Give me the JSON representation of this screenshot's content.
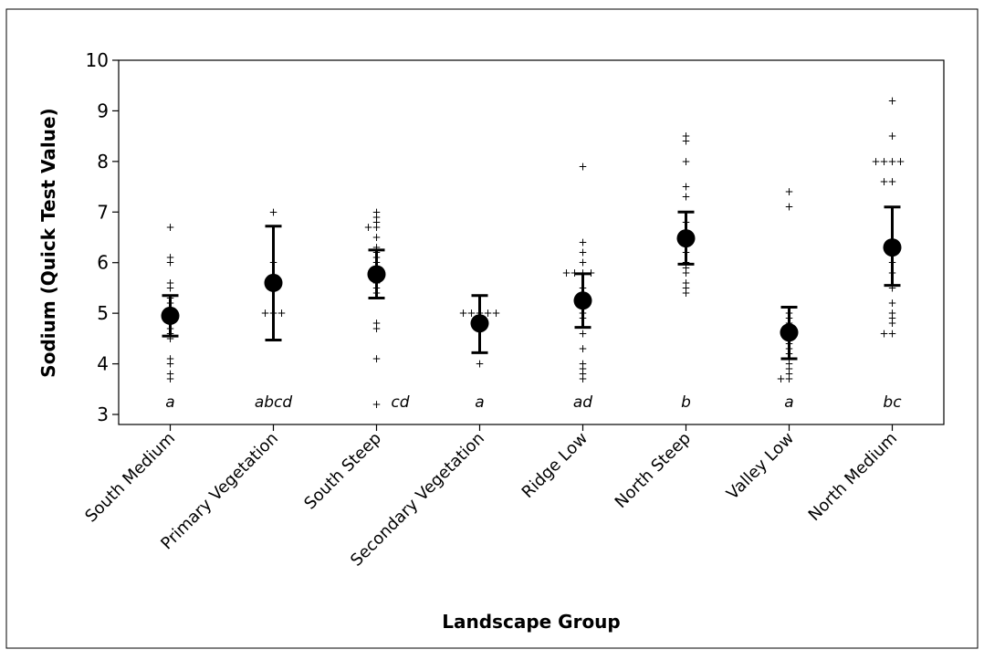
{
  "chart_data": {
    "type": "scatter",
    "xlabel": "Landscape Group",
    "ylabel": "Sodium (Quick Test Value)",
    "ylim": [
      3,
      10
    ],
    "yticks": [
      3,
      4,
      5,
      6,
      7,
      8,
      9,
      10
    ],
    "grid": false,
    "categories": [
      "South Medium",
      "Primary Vegetation",
      "South Steep",
      "Secondary Vegetation",
      "Ridge Low",
      "North Steep",
      "Valley Low",
      "North Medium"
    ],
    "groups": [
      {
        "category": "South Medium",
        "letter": "a",
        "mean": 4.95,
        "ci_low": 4.55,
        "ci_high": 5.35,
        "points": [
          6.7,
          6.1,
          6.0,
          5.6,
          5.5,
          5.3,
          5.2,
          5.1,
          5.0,
          4.9,
          4.8,
          4.7,
          4.6,
          4.5,
          4.1,
          4.0,
          3.8,
          3.7
        ]
      },
      {
        "category": "Primary Vegetation",
        "letter": "abcd",
        "mean": 5.6,
        "ci_low": 4.47,
        "ci_high": 6.72,
        "points": [
          7.0,
          6.0,
          5.0,
          5.0,
          5.0
        ]
      },
      {
        "category": "South Steep",
        "letter": "cd",
        "mean": 5.77,
        "ci_low": 5.3,
        "ci_high": 6.25,
        "points": [
          7.0,
          6.9,
          6.8,
          6.7,
          6.7,
          6.5,
          6.3,
          6.2,
          6.1,
          6.0,
          5.9,
          5.8,
          5.7,
          5.6,
          5.5,
          5.4,
          4.8,
          4.7,
          4.1,
          3.2
        ]
      },
      {
        "category": "Secondary Vegetation",
        "letter": "a",
        "mean": 4.8,
        "ci_low": 4.22,
        "ci_high": 5.35,
        "points": [
          5.0,
          5.0,
          5.0,
          5.0,
          5.0,
          4.0
        ]
      },
      {
        "category": "Ridge Low",
        "letter": "ad",
        "mean": 5.25,
        "ci_low": 4.72,
        "ci_high": 5.78,
        "points": [
          7.9,
          6.4,
          6.2,
          6.0,
          5.8,
          5.8,
          5.8,
          5.8,
          5.5,
          5.3,
          5.1,
          5.0,
          4.9,
          4.6,
          4.3,
          4.0,
          3.9,
          3.8,
          3.7
        ]
      },
      {
        "category": "North Steep",
        "letter": "b",
        "mean": 6.48,
        "ci_low": 5.97,
        "ci_high": 7.0,
        "points": [
          8.5,
          8.4,
          8.0,
          7.5,
          7.3,
          6.8,
          6.5,
          6.2,
          6.0,
          5.9,
          5.8,
          5.6,
          5.5,
          5.4
        ]
      },
      {
        "category": "Valley Low",
        "letter": "a",
        "mean": 4.62,
        "ci_low": 4.1,
        "ci_high": 5.12,
        "points": [
          7.4,
          7.1,
          5.0,
          4.9,
          4.8,
          4.7,
          4.5,
          4.4,
          4.3,
          4.2,
          4.1,
          4.0,
          3.9,
          3.8,
          3.7,
          3.7
        ]
      },
      {
        "category": "North Medium",
        "letter": "bc",
        "mean": 6.3,
        "ci_low": 5.55,
        "ci_high": 7.1,
        "points": [
          9.2,
          8.5,
          8.0,
          8.0,
          8.0,
          8.0,
          7.6,
          7.6,
          6.0,
          5.8,
          5.5,
          5.2,
          5.0,
          4.9,
          4.8,
          4.6,
          4.6
        ]
      }
    ]
  }
}
